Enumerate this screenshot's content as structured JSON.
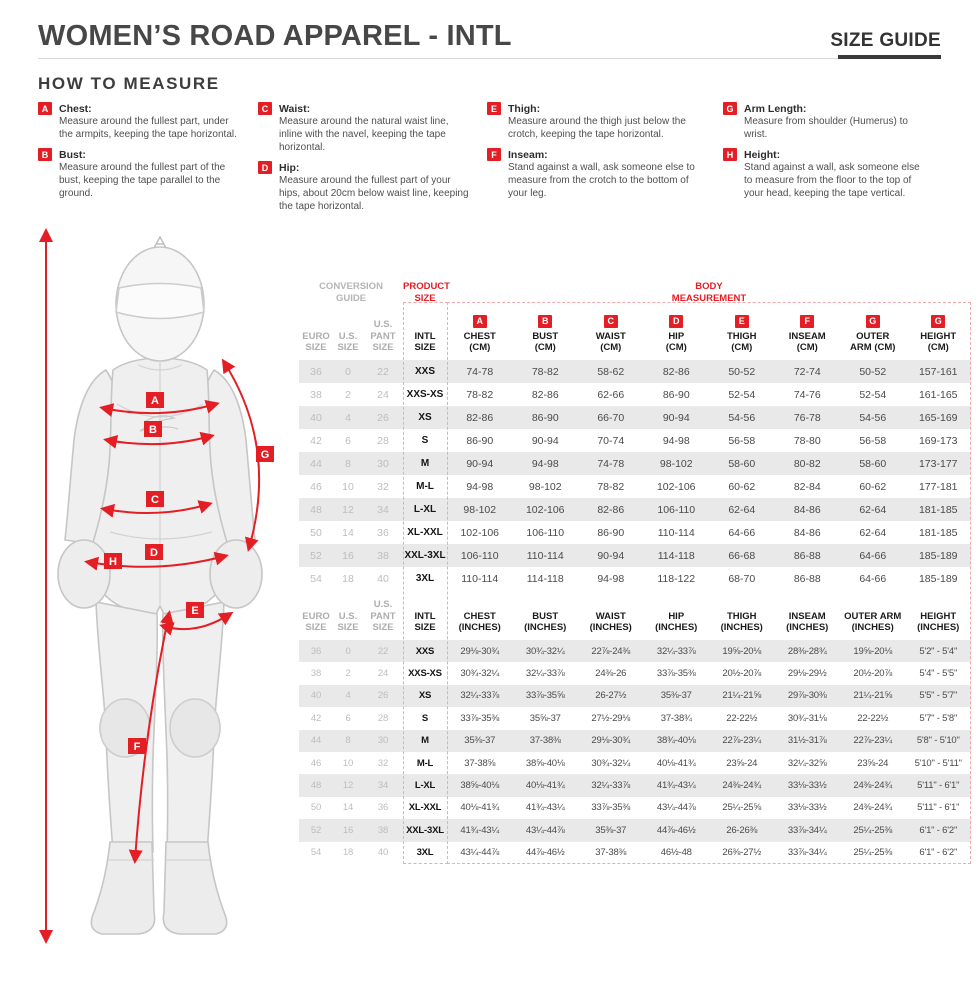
{
  "header": {
    "title": "WOMEN’S ROAD APPAREL - INTL",
    "size_guide_label": "SIZE GUIDE"
  },
  "how_to_measure": {
    "heading": "HOW TO MEASURE",
    "items": [
      {
        "letter": "A",
        "label": "Chest:",
        "desc": "Measure around the fullest part, under the armpits, keeping the tape horizontal."
      },
      {
        "letter": "B",
        "label": "Bust:",
        "desc": "Measure around the fullest part of the bust, keeping the tape parallel to the ground."
      },
      {
        "letter": "C",
        "label": "Waist:",
        "desc": "Measure around the natural waist line, inline with the navel, keeping the tape horizontal."
      },
      {
        "letter": "D",
        "label": "Hip:",
        "desc": "Measure around the fullest part of your hips, about 20cm below waist line, keeping the tape horizontal."
      },
      {
        "letter": "E",
        "label": "Thigh:",
        "desc": "Measure around the thigh just below the crotch, keeping the tape horizontal."
      },
      {
        "letter": "F",
        "label": "Inseam:",
        "desc": "Stand against a wall, ask someone else to measure from the crotch to the bottom of your leg."
      },
      {
        "letter": "G",
        "label": "Arm Length:",
        "desc": "Measure from shoulder (Humerus) to wrist."
      },
      {
        "letter": "H",
        "label": "Height:",
        "desc": "Stand against a wall, ask someone else to measure from the floor to the top of your head, keeping the tape vertical."
      }
    ]
  },
  "figure": {
    "badge_letters": {
      "a": "A",
      "b": "B",
      "c": "C",
      "d": "D",
      "e": "E",
      "f": "F",
      "g": "G",
      "h": "H"
    },
    "accent_color": "#e31e25"
  },
  "size_chart": {
    "conversion_guide_label": "CONVERSION\nGUIDE",
    "product_size_label": "PRODUCT\nSIZE",
    "body_measurement_label": "BODY\nMEASUREMENT",
    "left_headers": [
      "EURO\nSIZE",
      "U.S.\nSIZE",
      "U.S.\nPANT SIZE"
    ],
    "intl_header": "INTL\nSIZE",
    "cm_columns": [
      {
        "badge": "A",
        "label": "CHEST\n(CM)"
      },
      {
        "badge": "B",
        "label": "BUST\n(CM)"
      },
      {
        "badge": "C",
        "label": "WAIST\n(CM)"
      },
      {
        "badge": "D",
        "label": "HIP\n(CM)"
      },
      {
        "badge": "E",
        "label": "THIGH\n(CM)"
      },
      {
        "badge": "F",
        "label": "INSEAM\n(CM)"
      },
      {
        "badge": "G",
        "label": "OUTER\nARM (CM)"
      },
      {
        "badge": "G",
        "label": "HEIGHT\n(CM)"
      }
    ],
    "cm_rows": [
      {
        "conv": [
          "36",
          "0",
          "22"
        ],
        "intl": "XXS",
        "values": [
          "74-78",
          "78-82",
          "58-62",
          "82-86",
          "50-52",
          "72-74",
          "50-52",
          "157-161"
        ]
      },
      {
        "conv": [
          "38",
          "2",
          "24"
        ],
        "intl": "XXS-XS",
        "values": [
          "78-82",
          "82-86",
          "62-66",
          "86-90",
          "52-54",
          "74-76",
          "52-54",
          "161-165"
        ]
      },
      {
        "conv": [
          "40",
          "4",
          "26"
        ],
        "intl": "XS",
        "values": [
          "82-86",
          "86-90",
          "66-70",
          "90-94",
          "54-56",
          "76-78",
          "54-56",
          "165-169"
        ]
      },
      {
        "conv": [
          "42",
          "6",
          "28"
        ],
        "intl": "S",
        "values": [
          "86-90",
          "90-94",
          "70-74",
          "94-98",
          "56-58",
          "78-80",
          "56-58",
          "169-173"
        ]
      },
      {
        "conv": [
          "44",
          "8",
          "30"
        ],
        "intl": "M",
        "values": [
          "90-94",
          "94-98",
          "74-78",
          "98-102",
          "58-60",
          "80-82",
          "58-60",
          "173-177"
        ]
      },
      {
        "conv": [
          "46",
          "10",
          "32"
        ],
        "intl": "M-L",
        "values": [
          "94-98",
          "98-102",
          "78-82",
          "102-106",
          "60-62",
          "82-84",
          "60-62",
          "177-181"
        ]
      },
      {
        "conv": [
          "48",
          "12",
          "34"
        ],
        "intl": "L-XL",
        "values": [
          "98-102",
          "102-106",
          "82-86",
          "106-110",
          "62-64",
          "84-86",
          "62-64",
          "181-185"
        ]
      },
      {
        "conv": [
          "50",
          "14",
          "36"
        ],
        "intl": "XL-XXL",
        "values": [
          "102-106",
          "106-110",
          "86-90",
          "110-114",
          "64-66",
          "84-86",
          "62-64",
          "181-185"
        ]
      },
      {
        "conv": [
          "52",
          "16",
          "38"
        ],
        "intl": "XXL-3XL",
        "values": [
          "106-110",
          "110-114",
          "90-94",
          "114-118",
          "66-68",
          "86-88",
          "64-66",
          "185-189"
        ]
      },
      {
        "conv": [
          "54",
          "18",
          "40"
        ],
        "intl": "3XL",
        "values": [
          "110-114",
          "114-118",
          "94-98",
          "118-122",
          "68-70",
          "86-88",
          "64-66",
          "185-189"
        ]
      }
    ],
    "inch_columns": [
      {
        "label": "CHEST\n(INCHES)"
      },
      {
        "label": "BUST\n(INCHES)"
      },
      {
        "label": "WAIST\n(INCHES)"
      },
      {
        "label": "HIP\n(INCHES)"
      },
      {
        "label": "THIGH\n(INCHES)"
      },
      {
        "label": "INSEAM\n(INCHES)"
      },
      {
        "label": "OUTER ARM\n(INCHES)"
      },
      {
        "label": "HEIGHT\n(INCHES)"
      }
    ],
    "inch_rows": [
      {
        "conv": [
          "36",
          "0",
          "22"
        ],
        "intl": "XXS",
        "values": [
          "29⅛-30¾",
          "30¾-32¼",
          "22⅞-24⅜",
          "32¼-33⅞",
          "19⅝-20⅛",
          "28⅜-28¾",
          "19⅝-20⅛",
          "5'2\" - 5'4\""
        ]
      },
      {
        "conv": [
          "38",
          "2",
          "24"
        ],
        "intl": "XXS-XS",
        "values": [
          "30¾-32¼",
          "32¼-33⅞",
          "24⅜-26",
          "33⅞-35⅜",
          "20½-20⅞",
          "29⅛-29½",
          "20½-20⅞",
          "5'4\" - 5'5\""
        ]
      },
      {
        "conv": [
          "40",
          "4",
          "26"
        ],
        "intl": "XS",
        "values": [
          "32¼-33⅞",
          "33⅞-35⅝",
          "26-27½",
          "35⅜-37",
          "21¼-21⅝",
          "29⅞-30⅜",
          "21¼-21⅝",
          "5'5\" - 5'7\""
        ]
      },
      {
        "conv": [
          "42",
          "6",
          "28"
        ],
        "intl": "S",
        "values": [
          "33⅞-35⅜",
          "35⅝-37",
          "27½-29⅛",
          "37-38¾",
          "22-22½",
          "30¾-31⅛",
          "22-22½",
          "5'7\" - 5'8\""
        ]
      },
      {
        "conv": [
          "44",
          "8",
          "30"
        ],
        "intl": "M",
        "values": [
          "35⅜-37",
          "37-38⅜",
          "29⅛-30¾",
          "38¾-40⅛",
          "22⅞-23¼",
          "31½-31⅞",
          "22⅞-23¼",
          "5'8\" - 5'10\""
        ]
      },
      {
        "conv": [
          "46",
          "10",
          "32"
        ],
        "intl": "M-L",
        "values": [
          "37-38⅝",
          "38⅝-40⅛",
          "30¾-32¼",
          "40⅛-41¾",
          "23⅝-24",
          "32¼-32⅝",
          "23⅝-24",
          "5'10\" - 5'11\""
        ]
      },
      {
        "conv": [
          "48",
          "12",
          "34"
        ],
        "intl": "L-XL",
        "values": [
          "38⅝-40⅛",
          "40⅛-41¾",
          "32¼-33⅞",
          "41¾-43¼",
          "24⅜-24¾",
          "33⅛-33½",
          "24⅜-24¾",
          "5'11\" - 6'1\""
        ]
      },
      {
        "conv": [
          "50",
          "14",
          "36"
        ],
        "intl": "XL-XXL",
        "values": [
          "40⅛-41¾",
          "41¾-43¼",
          "33⅞-35⅜",
          "43¼-44⅞",
          "25¼-25⅝",
          "33⅛-33½",
          "24⅜-24¾",
          "5'11\" - 6'1\""
        ]
      },
      {
        "conv": [
          "52",
          "16",
          "38"
        ],
        "intl": "XXL-3XL",
        "values": [
          "41¾-43¼",
          "43¼-44⅞",
          "35⅜-37",
          "44⅞-46½",
          "26-26⅜",
          "33⅞-34¼",
          "25¼-25⅜",
          "6'1\" - 6'2\""
        ]
      },
      {
        "conv": [
          "54",
          "18",
          "40"
        ],
        "intl": "3XL",
        "values": [
          "43¼-44⅞",
          "44⅞-46½",
          "37-38⅜",
          "46½-48",
          "26⅜-27½",
          "33⅞-34¼",
          "25¼-25⅜",
          "6'1\" - 6'2\""
        ]
      }
    ]
  }
}
